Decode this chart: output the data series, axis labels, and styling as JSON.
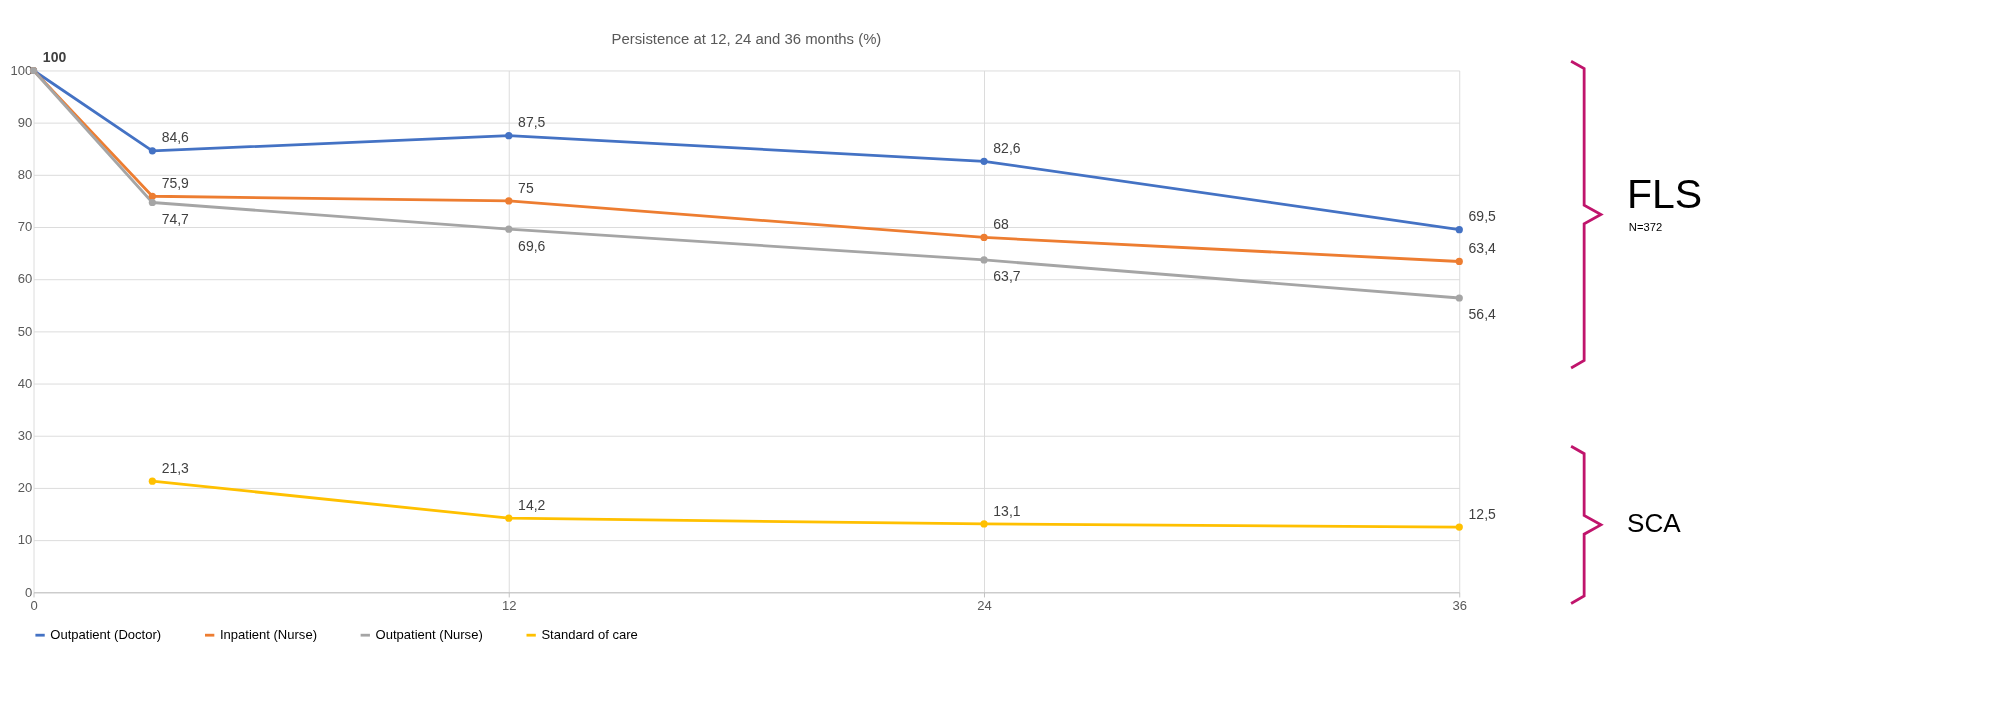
{
  "chart_data": {
    "type": "line",
    "title": "Persistence at 12, 24 and 36 months (%)",
    "x": [
      0,
      3,
      12,
      24,
      36
    ],
    "series": [
      {
        "name": "Outpatient (Doctor)",
        "color": "#4472c4",
        "values": [
          100,
          84.6,
          87.5,
          82.6,
          69.5
        ],
        "value_labels": [
          "100",
          "84,6",
          "87,5",
          "82,6",
          "69,5"
        ]
      },
      {
        "name": "Inpatient (Nurse)",
        "color": "#ed7d31",
        "values": [
          100,
          75.9,
          75,
          68,
          63.4
        ],
        "value_labels": [
          null,
          "75,9",
          "75",
          "68",
          "63,4"
        ]
      },
      {
        "name": "Outpatient (Nurse)",
        "color": "#a5a5a5",
        "values": [
          100,
          74.7,
          69.6,
          63.7,
          56.4
        ],
        "value_labels": [
          null,
          "74,7",
          "69,6",
          "63,7",
          "56,4"
        ]
      },
      {
        "name": "Standard of care",
        "color": "#ffc000",
        "x": [
          3,
          12,
          24,
          36
        ],
        "values": [
          21.3,
          14.2,
          13.1,
          12.5
        ],
        "value_labels": [
          "21,3",
          "14,2",
          "13,1",
          "12,5"
        ]
      }
    ],
    "xlim": [
      0,
      36
    ],
    "xticks": [
      0,
      12,
      24,
      36
    ],
    "ylim": [
      0,
      100
    ],
    "yticks": [
      0,
      10,
      20,
      30,
      40,
      50,
      60,
      70,
      80,
      90,
      100
    ],
    "grid": true,
    "legend": "bottom",
    "marker": "circle",
    "line_style": "solid",
    "annotations": [
      "FLS",
      "N=372",
      "SCA"
    ]
  }
}
